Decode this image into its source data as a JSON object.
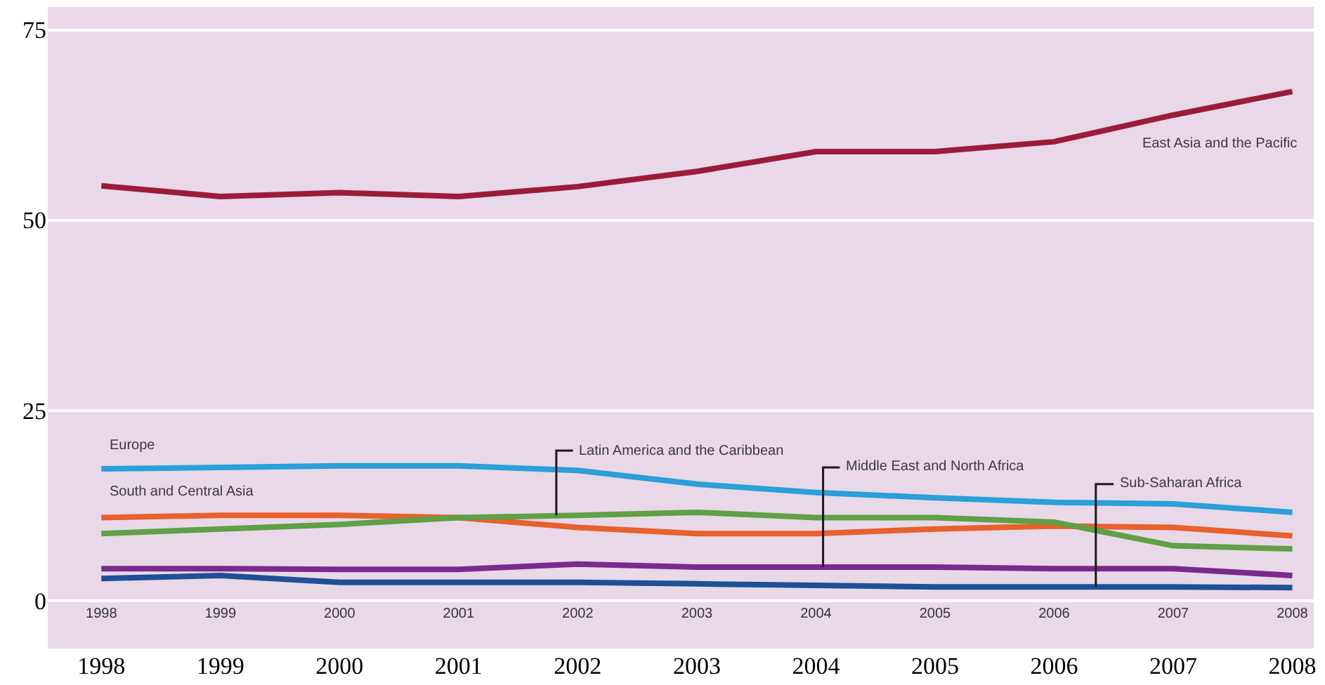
{
  "chart_data": {
    "type": "line",
    "x": [
      1998,
      1999,
      2000,
      2001,
      2002,
      2003,
      2004,
      2005,
      2006,
      2007,
      2008
    ],
    "series": [
      {
        "name": "East Asia and the Pacific",
        "color": "#9b1b3a",
        "values": [
          54.5,
          53.1,
          53.6,
          53.1,
          54.4,
          56.4,
          59.0,
          59.0,
          60.3,
          63.8,
          66.9
        ]
      },
      {
        "name": "Europe",
        "color": "#2a9fd8",
        "values": [
          17.3,
          17.5,
          17.7,
          17.7,
          17.1,
          15.3,
          14.2,
          13.5,
          12.9,
          12.7,
          11.6
        ]
      },
      {
        "name": "South and Central Asia",
        "color": "#e8602c",
        "values": [
          10.9,
          11.2,
          11.2,
          10.9,
          9.6,
          8.8,
          8.8,
          9.4,
          9.8,
          9.6,
          8.5
        ]
      },
      {
        "name": "Latin America and the Caribbean",
        "color": "#5f9f45",
        "values": [
          8.8,
          9.4,
          10.0,
          10.9,
          11.2,
          11.6,
          10.9,
          10.9,
          10.3,
          7.2,
          6.8
        ]
      },
      {
        "name": "Middle East and North Africa",
        "color": "#7a2a8e",
        "values": [
          4.2,
          4.2,
          4.1,
          4.1,
          4.8,
          4.4,
          4.4,
          4.4,
          4.2,
          4.2,
          3.3
        ]
      },
      {
        "name": "Sub-Saharan Africa",
        "color": "#1f4f96",
        "values": [
          2.9,
          3.3,
          2.4,
          2.4,
          2.4,
          2.2,
          2.0,
          1.8,
          1.8,
          1.8,
          1.7
        ]
      }
    ],
    "xlim": [
      1997.55,
      2008.18
    ],
    "xticks": [
      1998,
      1999,
      2000,
      2001,
      2002,
      2003,
      2004,
      2005,
      2006,
      2007,
      2008
    ],
    "x2lim": [
      1997.55,
      2008.18
    ],
    "x2ticks": [
      1998,
      1999,
      2000,
      2001,
      2002,
      2003,
      2004,
      2005,
      2006,
      2007,
      2008
    ],
    "ylim": [
      -6.3,
      78
    ],
    "yticks": [
      0,
      25,
      50,
      75
    ],
    "grid": "y",
    "legend": false,
    "marker": "none",
    "line_style": "solid"
  }
}
